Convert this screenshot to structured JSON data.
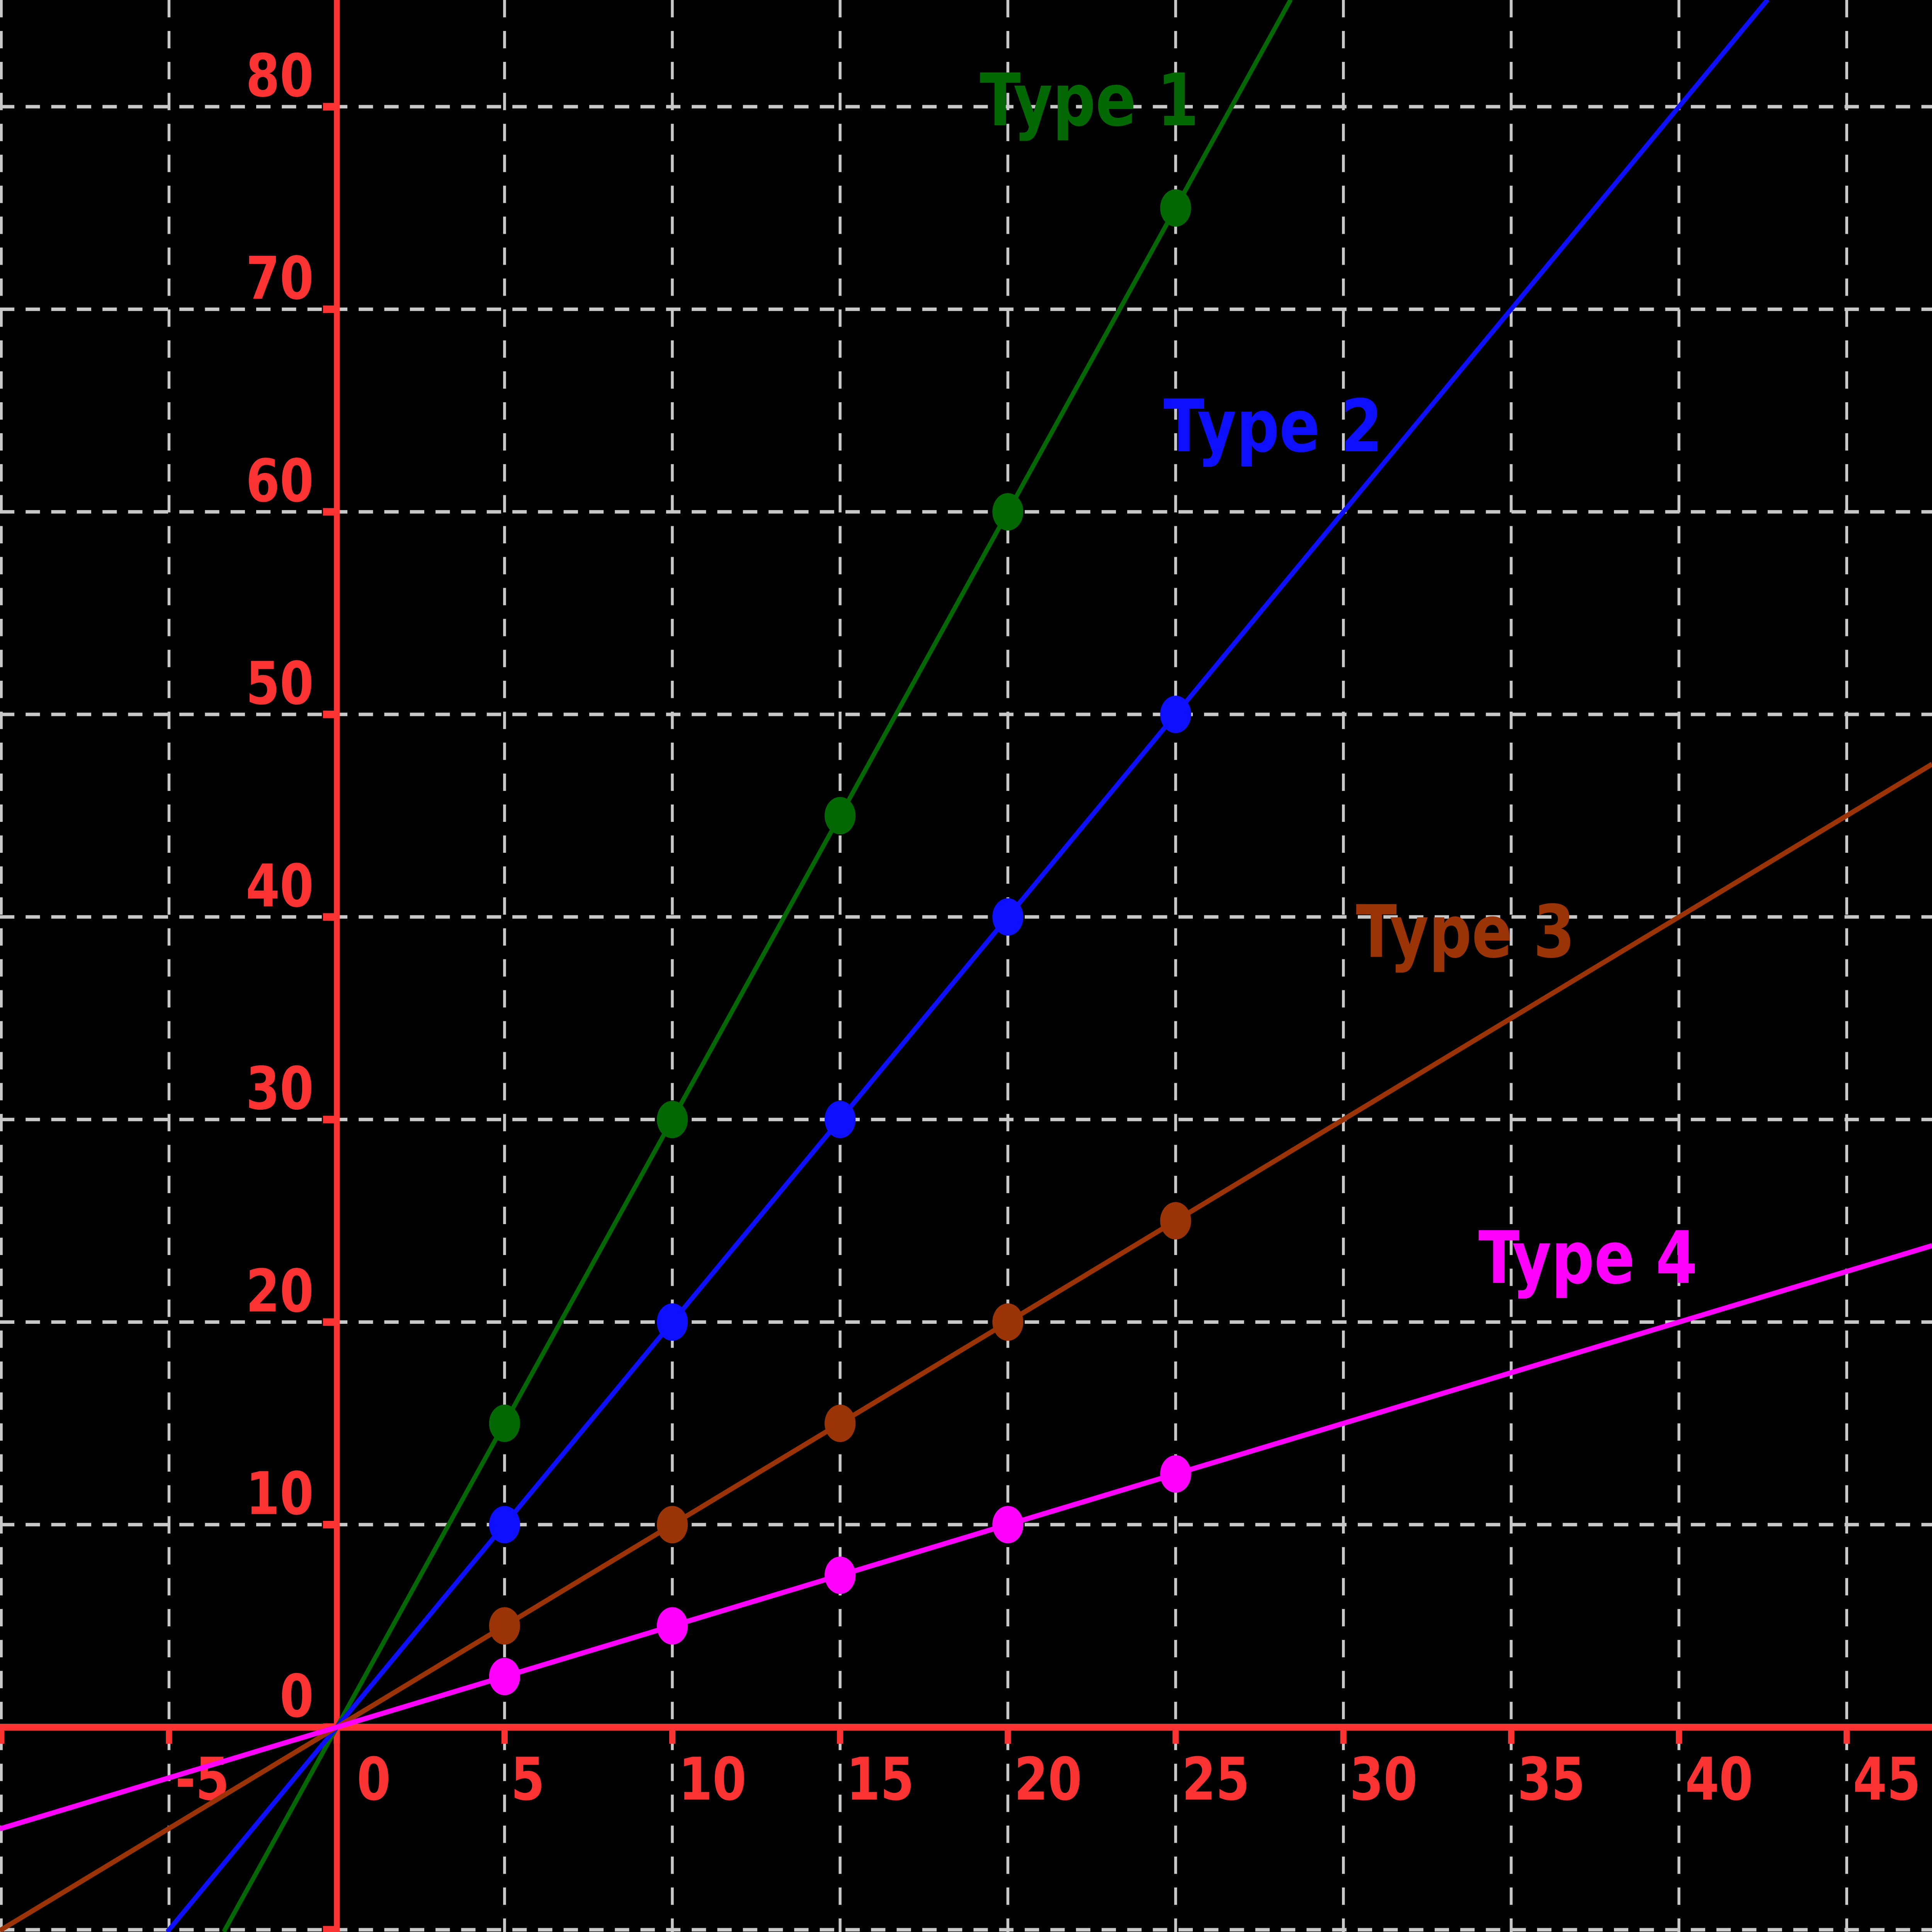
{
  "chart_data": {
    "type": "line",
    "title": "",
    "background": "#000000",
    "grid": {
      "visible": true,
      "style": "dashed",
      "color": "#c8c8c8",
      "x_step": 5,
      "y_step": 10
    },
    "x_range": [
      -10.04,
      47.54
    ],
    "y_range": [
      -10.11,
      85.3
    ],
    "axes": {
      "color": "#fc3333",
      "x_axis": {
        "ticks": [
          {
            "value": -10,
            "label": ""
          },
          {
            "value": -5,
            "label": "-5"
          },
          {
            "value": 0,
            "label": "0",
            "dx": 16
          },
          {
            "value": 5,
            "label": "5"
          },
          {
            "value": 10,
            "label": "10"
          },
          {
            "value": 15,
            "label": "15"
          },
          {
            "value": 20,
            "label": "20"
          },
          {
            "value": 25,
            "label": "25"
          },
          {
            "value": 30,
            "label": "30"
          },
          {
            "value": 35,
            "label": "35"
          },
          {
            "value": 40,
            "label": "40"
          },
          {
            "value": 45,
            "label": "45"
          }
        ]
      },
      "y_axis": {
        "ticks": [
          {
            "value": -10,
            "label": ""
          },
          {
            "value": 0,
            "label": "0"
          },
          {
            "value": 10,
            "label": "10"
          },
          {
            "value": 20,
            "label": "20"
          },
          {
            "value": 30,
            "label": "30"
          },
          {
            "value": 40,
            "label": "40"
          },
          {
            "value": 50,
            "label": "50"
          },
          {
            "value": 60,
            "label": "60"
          },
          {
            "value": 70,
            "label": "70"
          },
          {
            "value": 80,
            "label": "80"
          }
        ]
      }
    },
    "legend_position": "inline-labels",
    "series": [
      {
        "name": "Type 1",
        "color": "#036703",
        "slope": 3,
        "x": [
          5,
          10,
          15,
          20,
          25
        ],
        "y": [
          15,
          30,
          45,
          60,
          75
        ],
        "label_pos": {
          "x": 784,
          "baseline": 83
        }
      },
      {
        "name": "Type 2",
        "color": "#0f0fff",
        "slope": 2,
        "x": [
          5,
          10,
          15,
          20,
          25
        ],
        "y": [
          10,
          20,
          30,
          40,
          50
        ],
        "label_pos": {
          "x": 931,
          "baseline": 299
        }
      },
      {
        "name": "Type 3",
        "color": "#9a3305",
        "slope": 1,
        "x": [
          5,
          10,
          15,
          20,
          25
        ],
        "y": [
          5,
          10,
          15,
          20,
          25
        ],
        "label_pos": {
          "x": 1085,
          "baseline": 634
        }
      },
      {
        "name": "Type 4",
        "color": "#ff00ff",
        "slope": 0.5,
        "x": [
          5,
          10,
          15,
          20,
          25
        ],
        "y": [
          2.5,
          5,
          7.5,
          10,
          12.5
        ],
        "label_pos": {
          "x": 1183,
          "baseline": 850
        }
      }
    ]
  }
}
